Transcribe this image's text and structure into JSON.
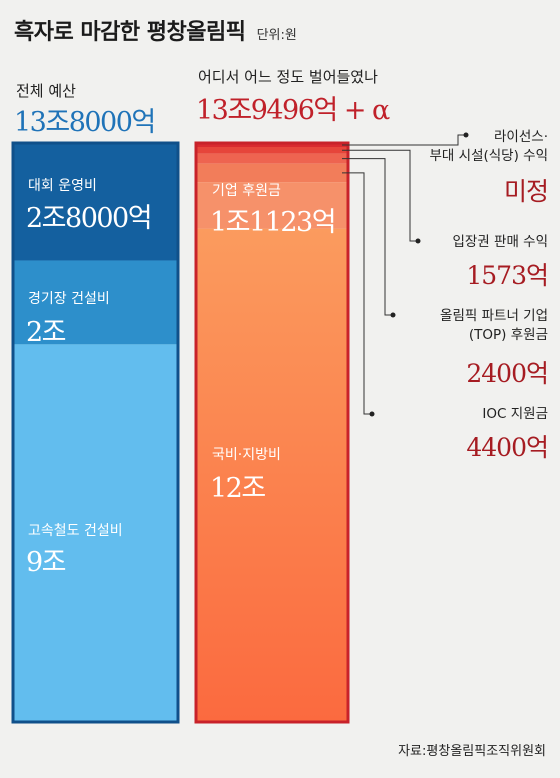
{
  "title": "흑자로 마감한 평창올림픽",
  "unit": "단위:원",
  "source": "자료:평창올림픽조직위원회",
  "chart_data": [
    {
      "type": "bar",
      "stacked": true,
      "title": "전체 예산",
      "total": "13조8000억",
      "segments": [
        {
          "label": "대회 운영비",
          "value_text": "2조8000억",
          "value": 2.8,
          "color": "#14609f"
        },
        {
          "label": "경기장 건설비",
          "value_text": "2조",
          "value": 2.0,
          "color": "#2d8fcb"
        },
        {
          "label": "고속철도 건설비",
          "value_text": "9조",
          "value": 9.0,
          "color": "#62bdee"
        }
      ]
    },
    {
      "type": "bar",
      "stacked": true,
      "title": "어디서 어느 정도 벌어들였나",
      "total": "13조9496억 + α",
      "segments": [
        {
          "label": "라이선스·부대 시설(식당) 수익",
          "value_text": "미정",
          "value": 0.04,
          "color": "#d92a2f"
        },
        {
          "label": "입장권 판매 수익",
          "value_text": "1573억",
          "value": 0.1573,
          "color": "#e6453a"
        },
        {
          "label": "올림픽 파트너 기업(TOP) 후원금",
          "value_text": "2400억",
          "value": 0.24,
          "color": "#ee6450"
        },
        {
          "label": "IOC 지원금",
          "value_text": "4400억",
          "value": 0.44,
          "color": "#f27d5a"
        },
        {
          "label": "기업 후원금",
          "value_text": "1조1123억",
          "value": 1.1123,
          "color": "#f6916a"
        },
        {
          "label": "국비·지방비",
          "value_text": "12조",
          "value": 12.0,
          "color": "#fb9b5e"
        }
      ]
    }
  ],
  "callouts": [
    {
      "line1": "라이선스·",
      "line2": "부대 시설(식당) 수익",
      "value": "미정"
    },
    {
      "line1": "입장권 판매 수익",
      "value": "1573억"
    },
    {
      "line1": "올림픽 파트너 기업",
      "line2": "(TOP) 후원금",
      "value": "2400억"
    },
    {
      "line1": "IOC 지원금",
      "value": "4400억"
    }
  ]
}
